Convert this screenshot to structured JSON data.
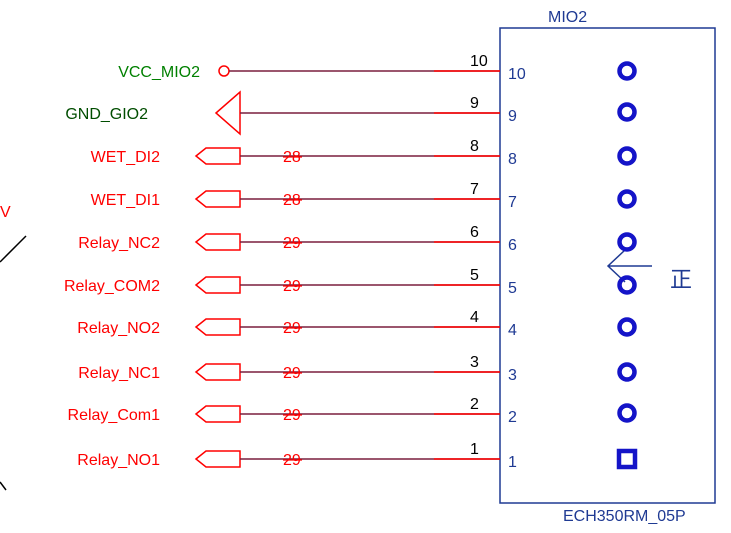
{
  "connector": {
    "title": "MIO2",
    "part": "ECH350RM_05P",
    "mark": "正",
    "stray_label": "V"
  },
  "colors": {
    "wire": "#7a1f3d",
    "net_red": "#ff0000",
    "net_green": "#008000",
    "net_dark_green": "#004d00",
    "pin_blue": "#1f3a93",
    "pad_blue": "#1414c8"
  },
  "pins": [
    {
      "pin": "10",
      "pin_label": "10",
      "net": "VCC_MIO2",
      "net_color": "green",
      "symbol": "power",
      "ref": ""
    },
    {
      "pin": "9",
      "pin_label": "9",
      "net": "GND_GIO2",
      "net_color": "dark_green",
      "symbol": "ground",
      "ref": ""
    },
    {
      "pin": "8",
      "pin_label": "8",
      "net": "WET_DI2",
      "net_color": "red",
      "symbol": "port",
      "ref": "28"
    },
    {
      "pin": "7",
      "pin_label": "7",
      "net": "WET_DI1",
      "net_color": "red",
      "symbol": "port",
      "ref": "28"
    },
    {
      "pin": "6",
      "pin_label": "6",
      "net": "Relay_NC2",
      "net_color": "red",
      "symbol": "port",
      "ref": "29"
    },
    {
      "pin": "5",
      "pin_label": "5",
      "net": "Relay_COM2",
      "net_color": "red",
      "symbol": "port",
      "ref": "29"
    },
    {
      "pin": "4",
      "pin_label": "4",
      "net": "Relay_NO2",
      "net_color": "red",
      "symbol": "port",
      "ref": "29"
    },
    {
      "pin": "3",
      "pin_label": "3",
      "net": "Relay_NC1",
      "net_color": "red",
      "symbol": "port",
      "ref": "29"
    },
    {
      "pin": "2",
      "pin_label": "2",
      "net": "Relay_Com1",
      "net_color": "red",
      "symbol": "port",
      "ref": "29"
    },
    {
      "pin": "1",
      "pin_label": "1",
      "net": "Relay_NO1",
      "net_color": "red",
      "symbol": "port",
      "ref": "29"
    }
  ]
}
